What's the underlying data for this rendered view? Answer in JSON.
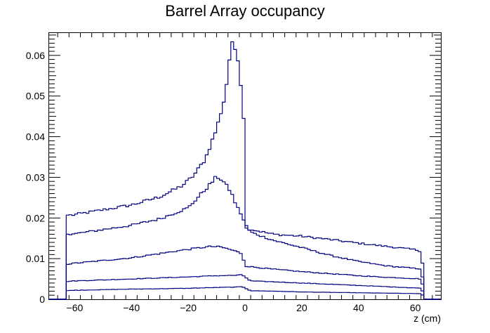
{
  "chart_data": {
    "type": "line",
    "step": true,
    "title": "Barrel Array occupancy",
    "xlabel": "z (cm)",
    "ylabel": "",
    "xlim": [
      -69,
      69
    ],
    "ylim": [
      0,
      0.0655
    ],
    "x_ticks": [
      -60,
      -40,
      -20,
      0,
      20,
      40,
      60
    ],
    "x_tick_labels": [
      "−60",
      "−40",
      "−20",
      "0",
      "20",
      "40",
      "60"
    ],
    "y_ticks": [
      0,
      0.01,
      0.02,
      0.03,
      0.04,
      0.05,
      0.06
    ],
    "y_tick_labels": [
      "0",
      "0.01",
      "0.02",
      "0.03",
      "0.04",
      "0.05",
      "0.06"
    ],
    "bin_range": [
      -63,
      63
    ],
    "grid": false,
    "legend": "none",
    "line_color": "#000080",
    "series": [
      {
        "profile_x": [
          -63,
          -61,
          -50,
          -40,
          -30,
          -22,
          -18,
          -14,
          -10,
          -7,
          -5.5,
          -4.5,
          -3.8,
          -2.5,
          -1.5,
          -0.5,
          0,
          2,
          10,
          20,
          30,
          40,
          50,
          60,
          62,
          63
        ],
        "profile_y": [
          0.0207,
          0.0207,
          0.022,
          0.0232,
          0.0252,
          0.028,
          0.0305,
          0.0345,
          0.042,
          0.05,
          0.059,
          0.0625,
          0.0622,
          0.0595,
          0.053,
          0.045,
          0.0175,
          0.0172,
          0.016,
          0.0155,
          0.0147,
          0.0138,
          0.013,
          0.0122,
          0.0118,
          0.006
        ]
      },
      {
        "profile_x": [
          -63,
          -61,
          -40,
          -30,
          -20,
          -16,
          -12,
          -10,
          -8,
          -5,
          -3,
          -1,
          0,
          2,
          10,
          20,
          30,
          40,
          50,
          60,
          62,
          63
        ],
        "profile_y": [
          0.016,
          0.016,
          0.0182,
          0.0198,
          0.0225,
          0.0255,
          0.0285,
          0.0302,
          0.0293,
          0.0265,
          0.023,
          0.0205,
          0.0185,
          0.0165,
          0.0145,
          0.0127,
          0.0108,
          0.0093,
          0.0082,
          0.0076,
          0.0075,
          0.0035
        ]
      },
      {
        "profile_x": [
          -63,
          -61,
          -40,
          -20,
          -12,
          -8,
          -4,
          -1,
          0,
          2,
          10,
          20,
          30,
          40,
          50,
          60,
          62,
          63
        ],
        "profile_y": [
          0.0085,
          0.0088,
          0.0102,
          0.0123,
          0.013,
          0.0128,
          0.012,
          0.0112,
          0.0082,
          0.008,
          0.0074,
          0.0068,
          0.0063,
          0.0058,
          0.0054,
          0.0051,
          0.005,
          0.0025
        ]
      },
      {
        "profile_x": [
          -63,
          -61,
          -40,
          -20,
          -10,
          -3,
          -1,
          0,
          2,
          10,
          20,
          30,
          40,
          50,
          60,
          62,
          63
        ],
        "profile_y": [
          0.0043,
          0.0045,
          0.005,
          0.0055,
          0.0058,
          0.0059,
          0.006,
          0.0055,
          0.0045,
          0.0043,
          0.004,
          0.0037,
          0.0034,
          0.0031,
          0.0028,
          0.0027,
          0.0014
        ]
      },
      {
        "profile_x": [
          -63,
          -61,
          -40,
          -20,
          -10,
          -3,
          -1,
          0,
          2,
          10,
          20,
          30,
          40,
          50,
          60,
          62,
          63
        ],
        "profile_y": [
          0.0021,
          0.0022,
          0.0025,
          0.0027,
          0.0029,
          0.003,
          0.0031,
          0.0028,
          0.0021,
          0.002,
          0.0018,
          0.0017,
          0.0016,
          0.0015,
          0.0014,
          0.0014,
          0.0007
        ]
      }
    ]
  }
}
